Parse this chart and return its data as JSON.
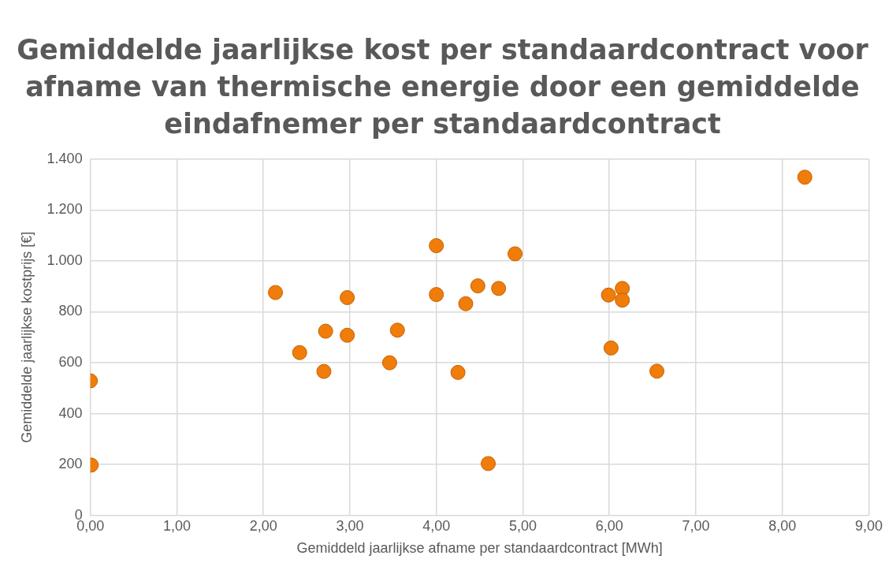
{
  "chart_data": {
    "type": "scatter",
    "title": "Gemiddelde jaarlijkse kost per standaardcontract voor afname van thermische energie door een gemiddelde eindafnemer per standaardcontract",
    "xlabel": "Gemiddeld jaarlijkse afname per standaardcontract [MWh]",
    "ylabel": "Gemiddelde jaarlijkse kostprijs [€]",
    "x": [
      0,
      0.01,
      2.14,
      2.42,
      2.72,
      2.7,
      2.97,
      2.97,
      3.46,
      3.55,
      4.0,
      4.0,
      4.91,
      4.48,
      4.72,
      4.34,
      4.25,
      4.6,
      5.99,
      6.15,
      6.15,
      6.02,
      6.55,
      8.26
    ],
    "values": [
      529,
      198,
      876,
      640,
      724,
      566,
      856,
      708,
      600,
      728,
      1060,
      868,
      1028,
      902,
      892,
      832,
      562,
      204,
      866,
      892,
      846,
      658,
      567,
      1329
    ],
    "color": "#f07d0a",
    "marker": "circle",
    "xlim": [
      0,
      9
    ],
    "xticks": [
      {
        "value": 0,
        "label": "0,00"
      },
      {
        "value": 1,
        "label": "1,00"
      },
      {
        "value": 2,
        "label": "2,00"
      },
      {
        "value": 3,
        "label": "3,00"
      },
      {
        "value": 4,
        "label": "4,00"
      },
      {
        "value": 5,
        "label": "5,00"
      },
      {
        "value": 6,
        "label": "6,00"
      },
      {
        "value": 7,
        "label": "7,00"
      },
      {
        "value": 8,
        "label": "8,00"
      },
      {
        "value": 9,
        "label": "9,00"
      }
    ],
    "ylim": [
      0,
      1400
    ],
    "yticks": [
      0,
      200,
      400,
      600,
      800,
      {
        "value": 1000,
        "label": "1.000"
      },
      {
        "value": 1200,
        "label": "1.200"
      },
      {
        "value": 1400,
        "label": "1.400"
      }
    ],
    "grid": true
  }
}
